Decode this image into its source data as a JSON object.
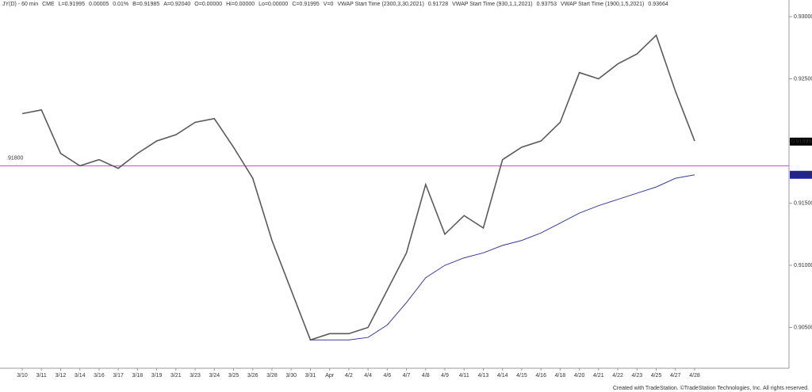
{
  "chart_data": {
    "type": "line",
    "header": [
      {
        "text": "JY(D) - 60 min",
        "color": "#333333"
      },
      {
        "text": "CME",
        "color": "#333333"
      },
      {
        "text": "L=0.91995",
        "color": "#1a1aa0"
      },
      {
        "text": "0.00005",
        "color": "#1a1aa0"
      },
      {
        "text": "0.01%",
        "color": "#1a1aa0"
      },
      {
        "text": "B=0.91985",
        "color": "#888888"
      },
      {
        "text": "A=0.92040",
        "color": "#888888"
      },
      {
        "text": "O=0.00000",
        "color": "#1a1aa0"
      },
      {
        "text": "Hi=0.00000",
        "color": "#888888"
      },
      {
        "text": "Lo=0.00000",
        "color": "#888888"
      },
      {
        "text": "C=0.91995",
        "color": "#1a1aa0"
      },
      {
        "text": "V=0",
        "color": "#888888"
      },
      {
        "text": "VWAP Start Time (2300,3,30,2021)",
        "color": "#888888"
      },
      {
        "text": "0.91728",
        "color": "#1a1aa0"
      },
      {
        "text": "VWAP Start Time (930,1,1,2021)",
        "color": "#888888"
      },
      {
        "text": "0.93753",
        "color": "#d02020"
      },
      {
        "text": "VWAP Start Time (1900,1,5,2021)",
        "color": "#888888"
      },
      {
        "text": "0.93664",
        "color": "#d02020"
      }
    ],
    "categories": [
      "3/10",
      "3/11",
      "3/12",
      "3/14",
      "3/16",
      "3/17",
      "3/18",
      "3/19",
      "3/21",
      "3/23",
      "3/24",
      "3/25",
      "3/26",
      "3/28",
      "3/30",
      "3/31",
      "Apr",
      "4/2",
      "4/4",
      "4/6",
      "4/7",
      "4/8",
      "4/9",
      "4/11",
      "4/13",
      "4/14",
      "4/15",
      "4/16",
      "4/18",
      "4/20",
      "4/21",
      "4/22",
      "4/23",
      "4/25",
      "4/27",
      "4/28"
    ],
    "series": [
      {
        "color": "#5a5a5a",
        "values": [
          0.9222,
          0.9225,
          0.919,
          0.918,
          0.9185,
          0.9178,
          0.919,
          0.92,
          0.9205,
          0.9215,
          0.9218,
          0.9195,
          0.917,
          0.912,
          0.908,
          0.904,
          0.9045,
          0.9045,
          0.905,
          0.908,
          0.911,
          0.9165,
          0.9125,
          0.914,
          0.913,
          0.9185,
          0.9195,
          0.92,
          0.9215,
          0.9255,
          0.925,
          0.9262,
          0.927,
          0.9285,
          0.924,
          0.92
        ]
      },
      {
        "color": "#3a3a9a",
        "values": [
          null,
          null,
          null,
          null,
          null,
          null,
          null,
          null,
          null,
          null,
          null,
          null,
          null,
          null,
          null,
          0.904,
          0.904,
          0.904,
          0.9042,
          0.9052,
          0.907,
          0.909,
          0.91,
          0.9106,
          0.911,
          0.9116,
          0.912,
          0.9126,
          0.9134,
          0.9142,
          0.9148,
          0.9153,
          0.9158,
          0.9163,
          0.917,
          0.91728
        ]
      }
    ],
    "hline": {
      "value": 0.918,
      "label": ".91800",
      "color": "#cc44cc"
    },
    "last_price": 0.91995,
    "vwap_last": 0.91728,
    "ylim": [
      0.90172,
      0.93134
    ],
    "yticks": [
      {
        "value": 0.905,
        "label": "0.90500"
      },
      {
        "value": 0.91,
        "label": "0.91000"
      },
      {
        "value": 0.915,
        "label": "0.91500"
      },
      {
        "value": 0.92,
        "label": "0.92000"
      },
      {
        "value": 0.925,
        "label": "0.92500"
      },
      {
        "value": 0.93,
        "label": "0.93000"
      }
    ],
    "footer": "Created with TradeStation. ©TradeStation Technologies, Inc. All rights reserved."
  }
}
